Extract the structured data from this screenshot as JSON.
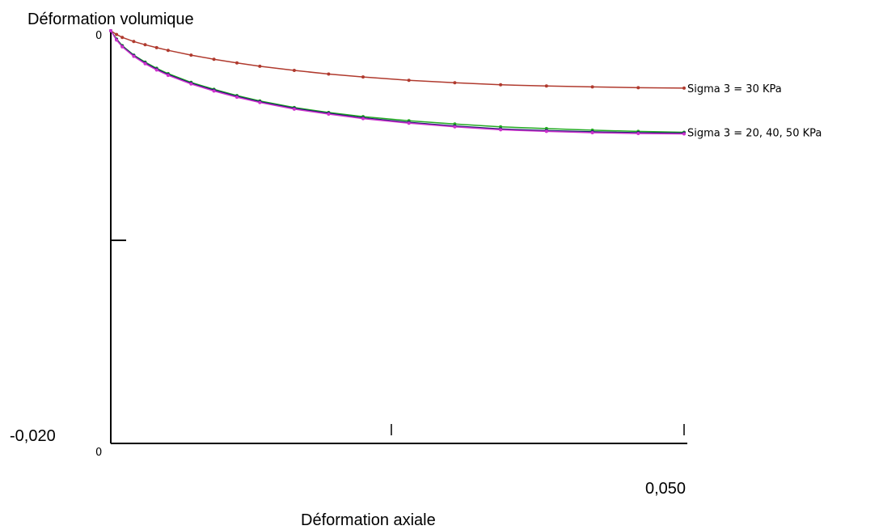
{
  "chart_data": {
    "type": "line",
    "ylabel": "Déformation volumique",
    "xlabel": "Déformation  axiale",
    "y_top_label": "0",
    "y_bottom_label": "-0,020",
    "x_origin_label": "0",
    "x_end_label": "0,050",
    "xlim": [
      0,
      0.05
    ],
    "ylim": [
      -0.02,
      0
    ],
    "grid": false,
    "legend": "inline labels at line ends",
    "series": [
      {
        "name": "Sigma 3 = 30 KPa",
        "color": "#b03a2e",
        "x": [
          0,
          0.0005,
          0.001,
          0.002,
          0.003,
          0.004,
          0.005,
          0.007,
          0.009,
          0.011,
          0.013,
          0.016,
          0.019,
          0.022,
          0.026,
          0.03,
          0.034,
          0.038,
          0.042,
          0.046,
          0.05
        ],
        "y": [
          0,
          -0.00018,
          -0.00032,
          -0.00052,
          -0.00068,
          -0.00082,
          -0.00095,
          -0.00118,
          -0.00138,
          -0.00156,
          -0.00172,
          -0.00192,
          -0.0021,
          -0.00224,
          -0.0024,
          -0.00252,
          -0.00262,
          -0.00268,
          -0.00272,
          -0.00276,
          -0.00278
        ]
      },
      {
        "name": "Sigma 3 = 20, 40, 50 KPa",
        "color": "#22aa22",
        "x": [
          0,
          0.0005,
          0.001,
          0.002,
          0.003,
          0.004,
          0.005,
          0.007,
          0.009,
          0.011,
          0.013,
          0.016,
          0.019,
          0.022,
          0.026,
          0.03,
          0.034,
          0.038,
          0.042,
          0.046,
          0.05
        ],
        "y": [
          0,
          -0.0004,
          -0.00072,
          -0.00118,
          -0.00152,
          -0.00182,
          -0.00208,
          -0.0025,
          -0.00284,
          -0.00314,
          -0.0034,
          -0.00372,
          -0.00396,
          -0.00416,
          -0.00436,
          -0.00452,
          -0.00466,
          -0.00474,
          -0.00482,
          -0.00488,
          -0.00492
        ]
      },
      {
        "name": "",
        "color": "#1a1a6e",
        "x": [
          0,
          0.0005,
          0.001,
          0.002,
          0.003,
          0.004,
          0.005,
          0.007,
          0.009,
          0.011,
          0.013,
          0.016,
          0.019,
          0.022,
          0.026,
          0.03,
          0.034,
          0.038,
          0.042,
          0.046,
          0.05
        ],
        "y": [
          0,
          -0.00042,
          -0.00075,
          -0.0012,
          -0.00156,
          -0.00186,
          -0.00212,
          -0.00254,
          -0.00288,
          -0.00318,
          -0.00344,
          -0.00376,
          -0.004,
          -0.00422,
          -0.00444,
          -0.00462,
          -0.00476,
          -0.00484,
          -0.0049,
          -0.00494,
          -0.00496
        ]
      },
      {
        "name": "",
        "color": "#cc33cc",
        "x": [
          0,
          0.0005,
          0.001,
          0.002,
          0.003,
          0.004,
          0.005,
          0.007,
          0.009,
          0.011,
          0.013,
          0.016,
          0.019,
          0.022,
          0.026,
          0.03,
          0.034,
          0.038,
          0.042,
          0.046,
          0.05
        ],
        "y": [
          0,
          -0.00045,
          -0.00078,
          -0.00124,
          -0.0016,
          -0.0019,
          -0.00216,
          -0.00258,
          -0.00292,
          -0.00322,
          -0.00348,
          -0.0038,
          -0.00404,
          -0.00426,
          -0.00448,
          -0.00466,
          -0.0048,
          -0.00488,
          -0.00494,
          -0.00498,
          -0.005
        ]
      }
    ],
    "annotations": [
      {
        "text": "Sigma 3 = 30 KPa",
        "series_index": 0
      },
      {
        "text": "Sigma 3 = 20, 40, 50 KPa",
        "series_index": 1
      }
    ]
  }
}
